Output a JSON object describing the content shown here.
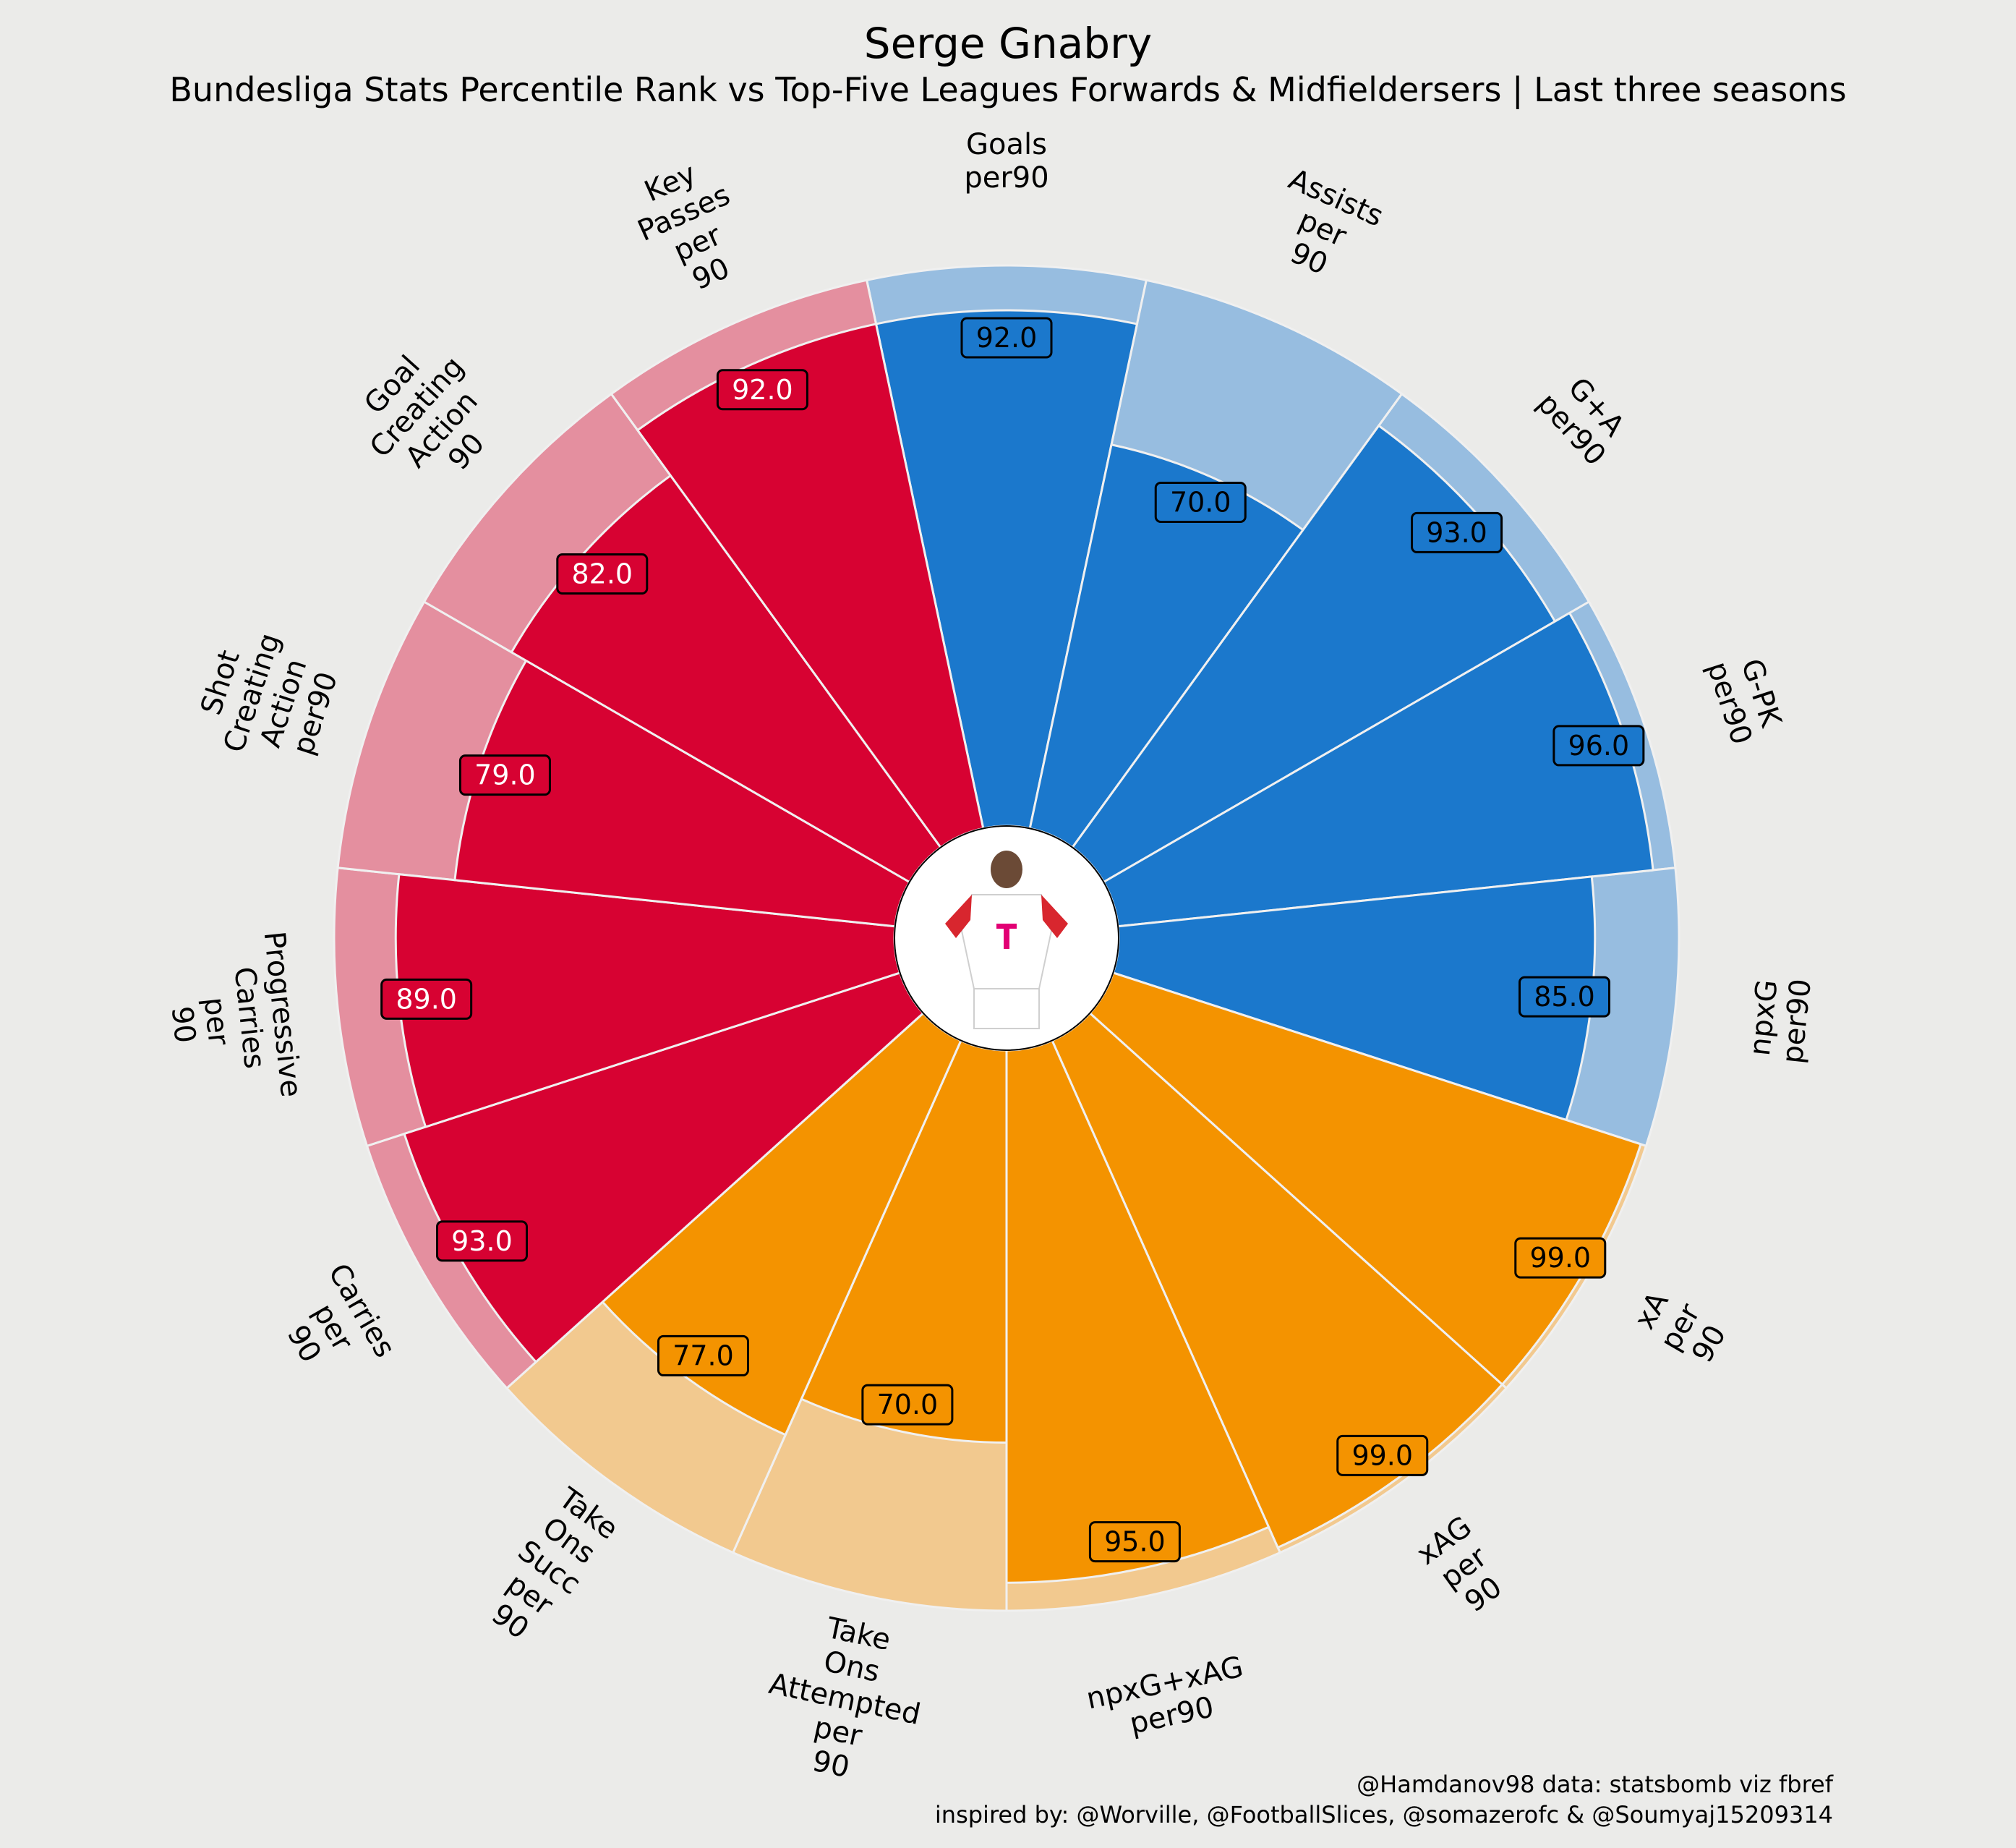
{
  "title": "Serge Gnabry",
  "subtitle": "Bundesliga Stats Percentile Rank vs Top-Five Leagues Forwards & Midfieldersers | Last three seasons",
  "credits": [
    "@Hamdanov98 data: statsbomb viz fbref",
    "inspired by: @Worville, @FootballSlices, @somazerofc & @Soumyaj15209314"
  ],
  "colors": {
    "background": "#ebebe9",
    "attacking": "#1b78cc",
    "attacking_bg": "#97bde0",
    "possession": "#f49300",
    "possession_bg": "#f2c98f",
    "creation": "#d70232",
    "creation_bg": "#e48f9f",
    "value_text_light": "#ffffff",
    "value_text_dark": "#000000"
  },
  "center_image": "player-photo",
  "chart_data": {
    "type": "pie",
    "subtype": "radial-bar (pizza) chart",
    "ylim": [
      0,
      100
    ],
    "categories": [
      "Goals\nper90",
      "Assists\nper\n90",
      "G+A\nper90",
      "G-PK\nper90",
      "npxG\nper90",
      "xA\nper\n90",
      "xAG\nper\n90",
      "npxG+xAG\nper90",
      "Take\nOns\nAttempted\nper\n90",
      "Take\nOns\nSucc\nper\n90",
      "Carries\nper\n90",
      "Progressive\nCarries\nper\n90",
      "Shot\nCreating\nAction\nper90",
      "Goal\nCreating\nAction\n90",
      "Key\nPasses\nper\n90"
    ],
    "values": [
      92.0,
      70.0,
      93.0,
      96.0,
      85.0,
      99.0,
      99.0,
      95.0,
      70.0,
      77.0,
      93.0,
      89.0,
      79.0,
      82.0,
      92.0
    ],
    "value_labels": [
      "92.0",
      "70.0",
      "93.0",
      "96.0",
      "85.0",
      "99.0",
      "99.0",
      "95.0",
      "70.0",
      "77.0",
      "93.0",
      "89.0",
      "79.0",
      "82.0",
      "92.0"
    ],
    "groups": [
      "attacking",
      "attacking",
      "attacking",
      "attacking",
      "attacking",
      "possession",
      "possession",
      "possession",
      "possession",
      "possession",
      "creation",
      "creation",
      "creation",
      "creation",
      "creation"
    ]
  }
}
